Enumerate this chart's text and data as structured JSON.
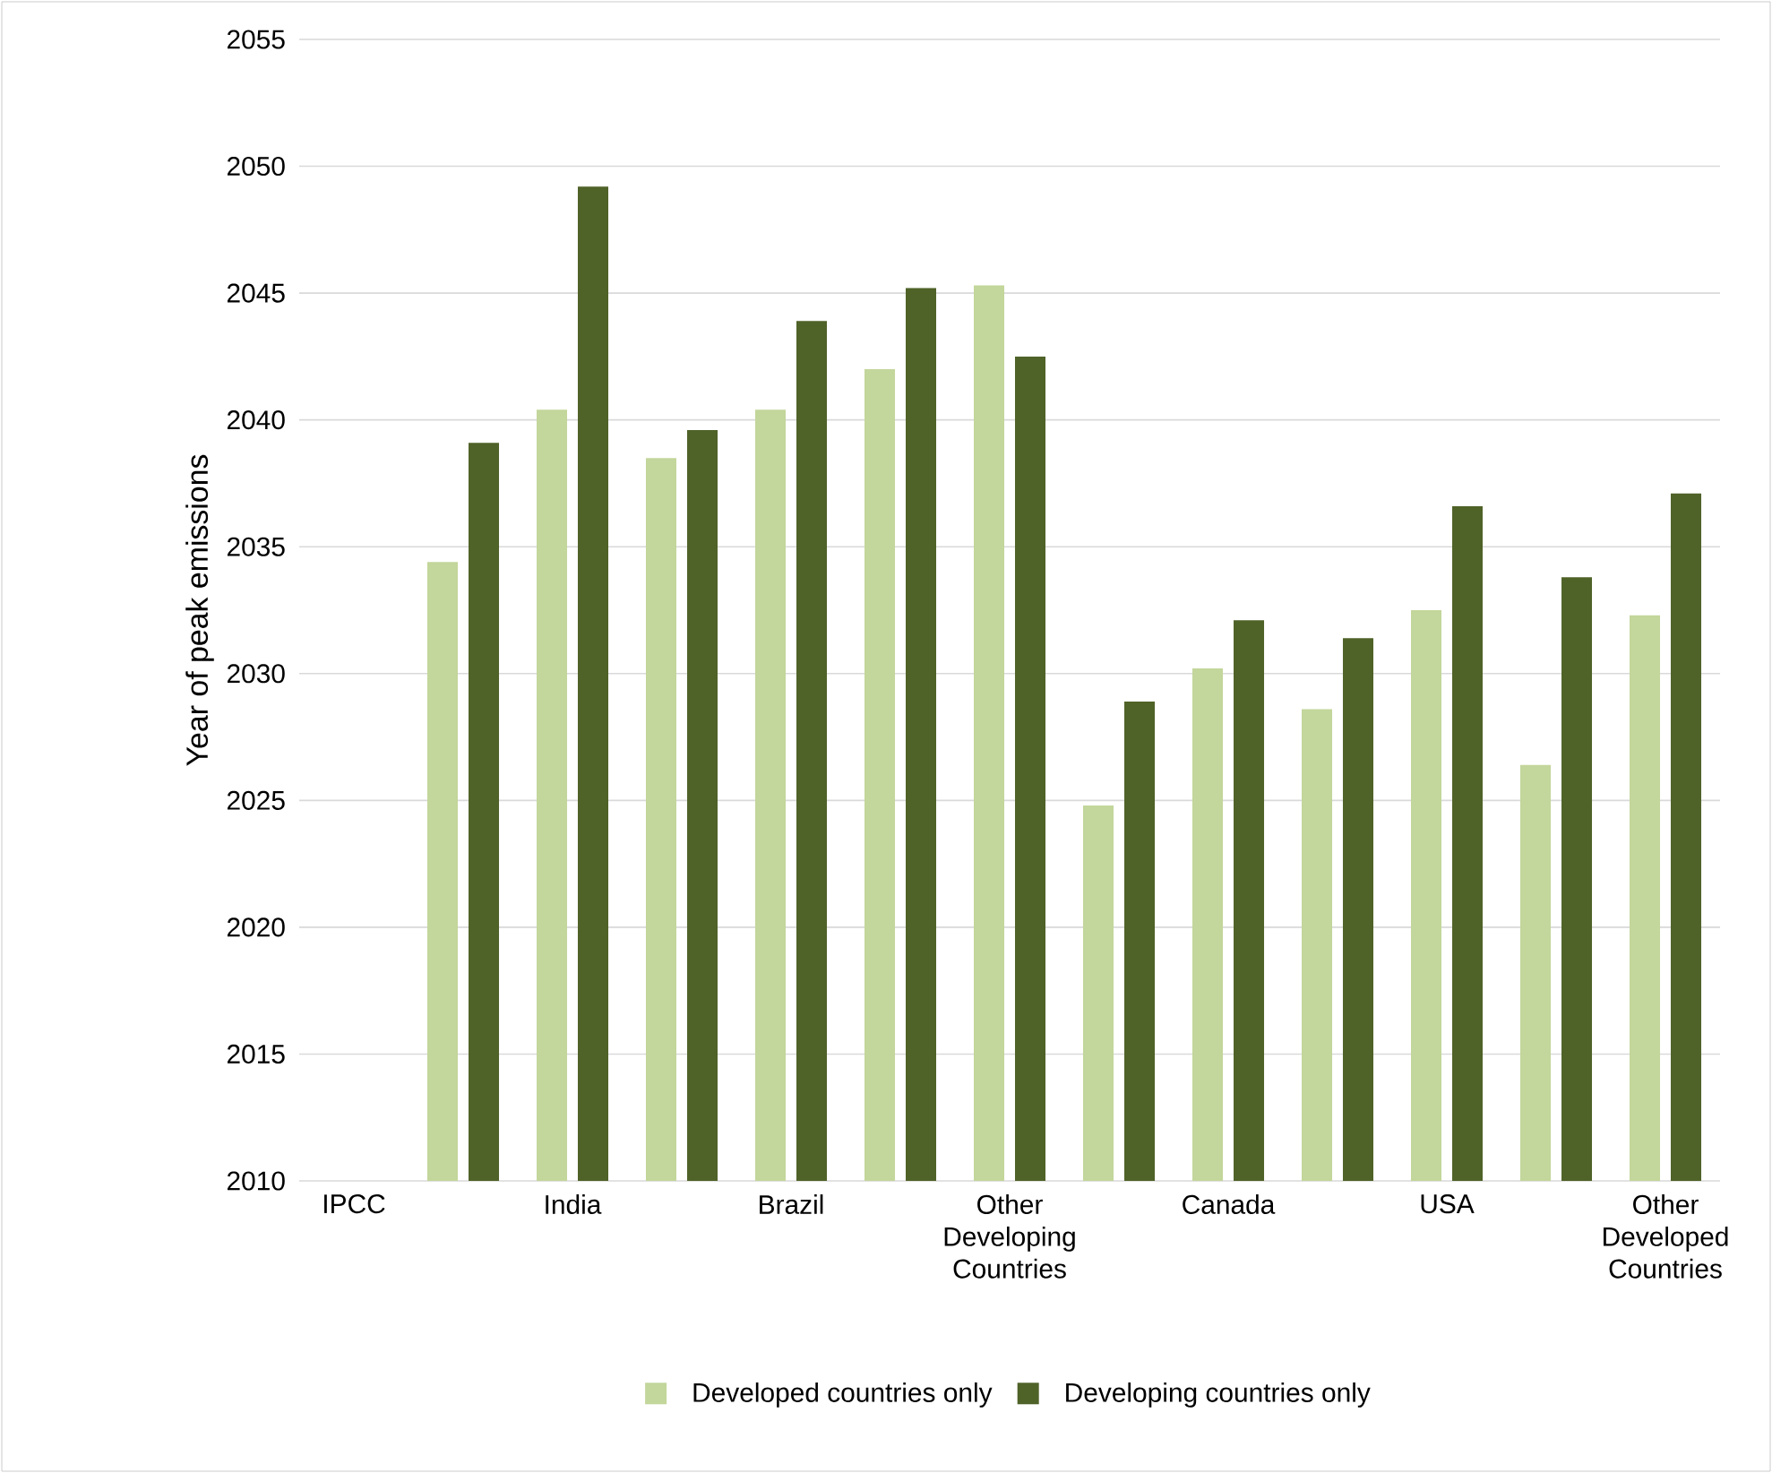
{
  "chart_data": {
    "type": "bar",
    "ylabel": "Year of peak emissions",
    "categories": [
      "IPCC",
      null,
      "India",
      null,
      "Brazil",
      null,
      "Other Developing Countries",
      null,
      "Canada",
      null,
      "USA",
      null,
      "Other Developed Countries"
    ],
    "series": [
      {
        "name": "Developed countries only",
        "color": "#c3d69b",
        "values": [
          null,
          2034.4,
          2040.4,
          2038.5,
          2040.4,
          2042.0,
          2045.3,
          2024.8,
          2030.2,
          2028.6,
          2032.5,
          2026.4,
          2032.3
        ]
      },
      {
        "name": "Developing countries only",
        "color": "#4f6228",
        "values": [
          null,
          2039.1,
          2049.2,
          2039.6,
          2043.9,
          2045.2,
          2042.5,
          2028.9,
          2032.1,
          2031.4,
          2036.6,
          2033.8,
          2037.1
        ]
      }
    ],
    "ylim": [
      2010,
      2055
    ],
    "yticks": [
      2010,
      2015,
      2020,
      2025,
      2030,
      2035,
      2040,
      2045,
      2050,
      2055
    ],
    "grid": "y",
    "legend": "bottom"
  }
}
